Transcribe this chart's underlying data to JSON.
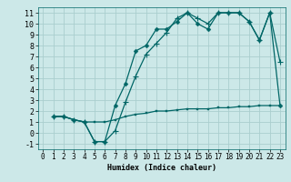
{
  "title": "",
  "xlabel": "Humidex (Indice chaleur)",
  "bg_color": "#cce8e8",
  "grid_color": "#aacece",
  "line_color": "#006666",
  "xlim": [
    -0.5,
    23.5
  ],
  "ylim": [
    -1.5,
    11.5
  ],
  "xticks": [
    0,
    1,
    2,
    3,
    4,
    5,
    6,
    7,
    8,
    9,
    10,
    11,
    12,
    13,
    14,
    15,
    16,
    17,
    18,
    19,
    20,
    21,
    22,
    23
  ],
  "yticks": [
    -1,
    0,
    1,
    2,
    3,
    4,
    5,
    6,
    7,
    8,
    9,
    10,
    11
  ],
  "curve1_x": [
    1,
    2,
    3,
    4,
    5,
    6,
    7,
    8,
    9,
    10,
    11,
    12,
    13,
    14,
    15,
    16,
    17,
    18,
    19,
    20,
    21,
    22,
    23
  ],
  "curve1_y": [
    1.5,
    1.5,
    1.2,
    1.0,
    -0.8,
    -0.8,
    2.5,
    4.5,
    7.5,
    8.0,
    9.5,
    9.5,
    10.2,
    11.0,
    10.0,
    9.5,
    11.0,
    11.0,
    11.0,
    10.2,
    8.5,
    11.0,
    2.5
  ],
  "curve2_x": [
    1,
    2,
    3,
    4,
    5,
    6,
    7,
    8,
    9,
    10,
    11,
    12,
    13,
    14,
    15,
    16,
    17,
    18,
    19,
    20,
    21,
    22,
    23
  ],
  "curve2_y": [
    1.5,
    1.5,
    1.2,
    1.0,
    -0.8,
    -0.8,
    0.2,
    2.8,
    5.2,
    7.2,
    8.2,
    9.2,
    10.5,
    11.0,
    10.5,
    10.0,
    11.0,
    11.0,
    11.0,
    10.2,
    8.5,
    11.0,
    6.5
  ],
  "curve3_x": [
    1,
    2,
    3,
    4,
    5,
    6,
    7,
    8,
    9,
    10,
    11,
    12,
    13,
    14,
    15,
    16,
    17,
    18,
    19,
    20,
    21,
    22,
    23
  ],
  "curve3_y": [
    1.5,
    1.5,
    1.2,
    1.0,
    1.0,
    1.0,
    1.2,
    1.5,
    1.7,
    1.8,
    2.0,
    2.0,
    2.1,
    2.2,
    2.2,
    2.2,
    2.3,
    2.3,
    2.4,
    2.4,
    2.5,
    2.5,
    2.5
  ],
  "xlabel_fontsize": 6.0,
  "tick_fontsize": 5.5
}
